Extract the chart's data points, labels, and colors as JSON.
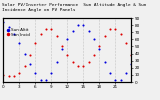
{
  "title": "Solar PV/Inverter Performance  Sun Altitude Angle & Sun Incidence Angle on PV Panels",
  "legend": [
    "Sun Altit",
    "Sun Incid"
  ],
  "line1_color": "#0000dd",
  "line2_color": "#dd0000",
  "x_values": [
    0,
    1,
    2,
    3,
    4,
    5,
    6,
    7,
    8,
    9,
    10,
    11,
    12,
    13,
    14,
    15,
    16,
    17,
    18,
    19,
    20,
    21,
    22,
    23,
    24
  ],
  "y_altitude": [
    85,
    78,
    68,
    55,
    40,
    25,
    12,
    3,
    3,
    12,
    28,
    46,
    60,
    72,
    80,
    80,
    72,
    60,
    46,
    28,
    12,
    3,
    3,
    12,
    25
  ],
  "y_incidence": [
    10,
    8,
    8,
    12,
    22,
    38,
    55,
    68,
    75,
    75,
    65,
    50,
    38,
    28,
    22,
    22,
    28,
    38,
    50,
    65,
    75,
    75,
    68,
    55,
    38
  ],
  "ylim": [
    0,
    90
  ],
  "xlim": [
    0,
    24
  ],
  "yticks": [
    0,
    10,
    20,
    30,
    40,
    50,
    60,
    70,
    80,
    90
  ],
  "xtick_labels": [
    "0",
    "",
    "",
    "3",
    "",
    "",
    "6",
    "",
    "",
    "9",
    "",
    "",
    "12",
    "",
    "",
    "15",
    "",
    "",
    "18",
    "",
    "",
    "21",
    "",
    "",
    ""
  ],
  "xtick_positions": [
    0,
    1,
    2,
    3,
    4,
    5,
    6,
    7,
    8,
    9,
    10,
    11,
    12,
    13,
    14,
    15,
    16,
    17,
    18,
    19,
    20,
    21,
    22,
    23,
    24
  ],
  "major_xtick_labels": [
    "0",
    "3",
    "6",
    "9",
    "12",
    "15",
    "18",
    "21"
  ],
  "major_xtick_positions": [
    0,
    3,
    6,
    9,
    12,
    15,
    18,
    21
  ],
  "background_color": "#f0f0f0",
  "grid_color": "#888888",
  "title_fontsize": 3.2,
  "tick_fontsize": 3.0,
  "legend_fontsize": 3.0,
  "marker_size_blue": 1.5,
  "marker_size_red": 1.5,
  "linewidth": 0.0
}
